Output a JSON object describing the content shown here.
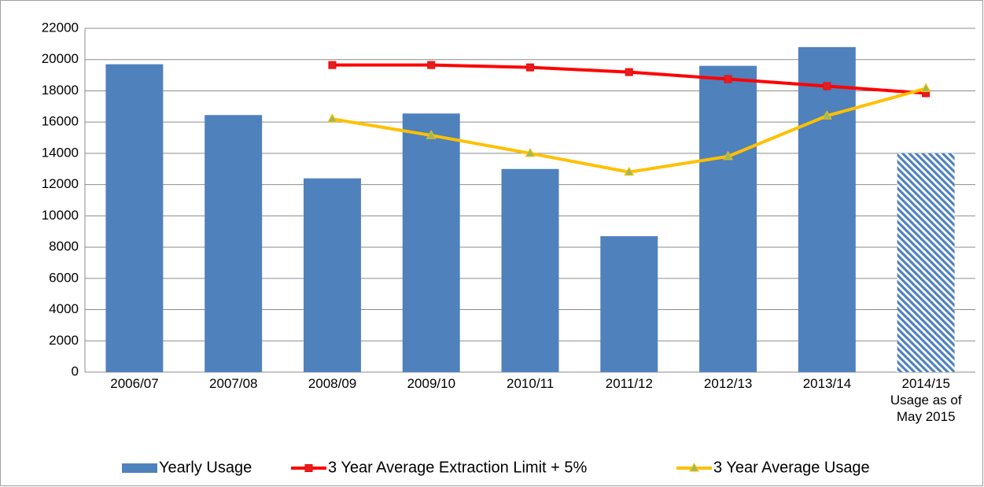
{
  "chart_data": {
    "type": "bar_line",
    "categories": [
      "2006/07",
      "2007/08",
      "2008/09",
      "2009/10",
      "2010/11",
      "2011/12",
      "2012/13",
      "2013/14",
      "2014/15\nUsage as of\nMay 2015"
    ],
    "series": [
      {
        "name": "Yearly Usage",
        "type": "bar",
        "color": "#4f81bd",
        "hatch": [
          false,
          false,
          false,
          false,
          false,
          false,
          false,
          false,
          true
        ],
        "values": [
          19700,
          16450,
          12400,
          16550,
          13000,
          8700,
          19600,
          20800,
          14000
        ]
      },
      {
        "name": "3 Year Average Extraction Limit + 5%",
        "type": "line",
        "color": "#ff0000",
        "marker": "square",
        "marker_color": "#e02020",
        "values": [
          null,
          null,
          19650,
          19650,
          19500,
          19200,
          18750,
          18300,
          17850
        ]
      },
      {
        "name": "3 Year Average Usage",
        "type": "line",
        "color": "#ffc000",
        "marker": "triangle",
        "marker_color": "#9bbb59",
        "values": [
          null,
          null,
          16200,
          15150,
          14000,
          12800,
          13800,
          16400,
          18150
        ]
      }
    ],
    "ylim": [
      0,
      22000
    ],
    "yticks": [
      0,
      2000,
      4000,
      6000,
      8000,
      10000,
      12000,
      14000,
      16000,
      18000,
      20000,
      22000
    ],
    "grid": true,
    "legend": "bottom"
  }
}
